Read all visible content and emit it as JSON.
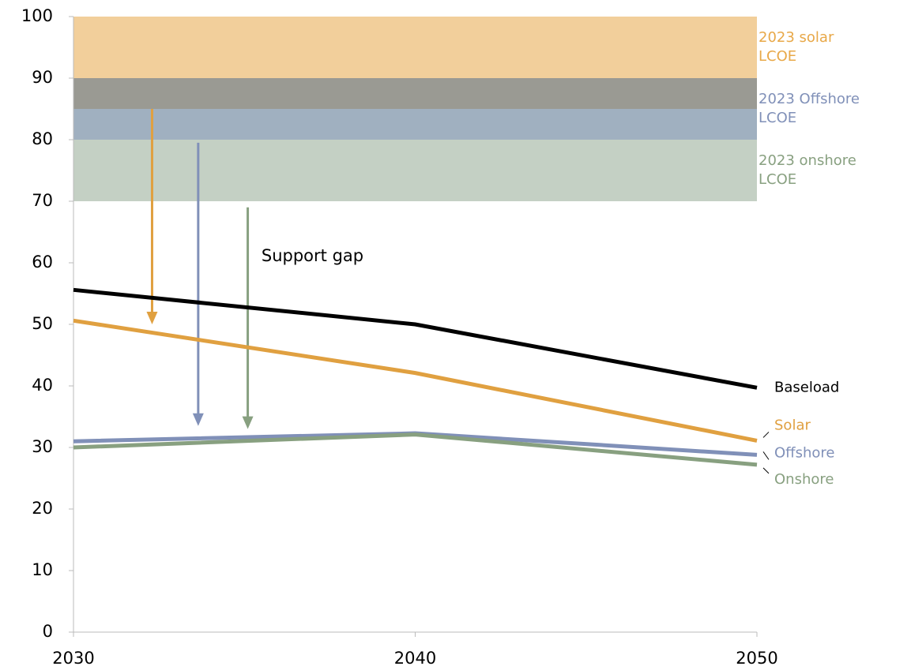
{
  "chart_data": {
    "type": "line",
    "x": [
      2030,
      2040,
      2050
    ],
    "xlim": [
      2030,
      2050
    ],
    "xticks": [
      2030,
      2040,
      2050
    ],
    "ylim": [
      0,
      100
    ],
    "yticks": [
      0,
      10,
      20,
      30,
      40,
      50,
      60,
      70,
      80,
      90,
      100
    ],
    "series": [
      {
        "name": "Baseload",
        "color": "#000000",
        "values": [
          55.6,
          50,
          39.7
        ]
      },
      {
        "name": "Solar",
        "color": "#e0a040",
        "values": [
          50.6,
          42.1,
          31.1
        ]
      },
      {
        "name": "Offshore",
        "color": "#8090b8",
        "values": [
          31.0,
          32.3,
          28.8
        ]
      },
      {
        "name": "Onshore",
        "color": "#88a080",
        "values": [
          30.0,
          32.1,
          27.2
        ]
      }
    ],
    "bands": [
      {
        "label": [
          "2023 solar",
          "LCOE"
        ],
        "range": [
          85,
          100
        ],
        "color": "#e8a848",
        "text_color": "#e8a848"
      },
      {
        "label": [
          "2023 Offshore",
          "LCOE"
        ],
        "range": [
          80,
          90
        ],
        "color": "#526f8c",
        "text_color": "#8090b8"
      },
      {
        "label": [
          "2023 onshore",
          "LCOE"
        ],
        "range": [
          70,
          80
        ],
        "color": "#94aa94",
        "text_color": "#88a080"
      }
    ],
    "arrows": [
      {
        "x": 2032.3,
        "from": 85,
        "to": 50,
        "color": "#e0a040"
      },
      {
        "x": 2033.65,
        "from": 79.5,
        "to": 33.5,
        "color": "#8090b8"
      },
      {
        "x": 2035.1,
        "from": 69,
        "to": 33,
        "color": "#88a080"
      }
    ],
    "annotation": {
      "text": "Support gap",
      "x": 2035.5,
      "y": 61
    }
  }
}
